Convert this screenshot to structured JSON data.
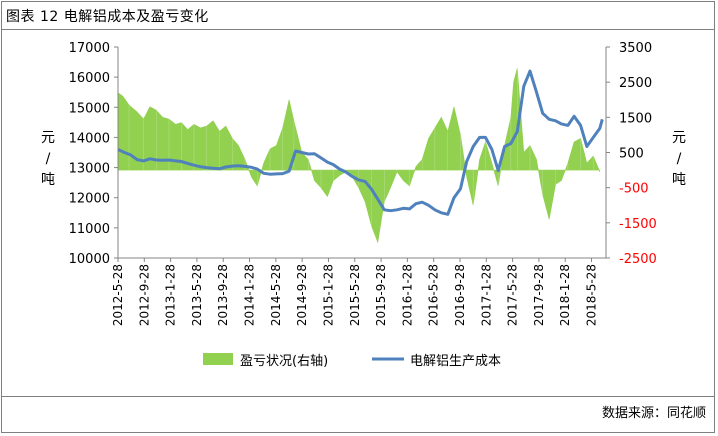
{
  "title": "图表 12 电解铝成本及盈亏变化",
  "source": "数据来源：同花顺",
  "units": {
    "left": [
      "元",
      "/",
      "吨"
    ],
    "right": [
      "元",
      "/",
      "吨"
    ]
  },
  "colors": {
    "profit_area": "#92d050",
    "cost_line": "#4f81bd",
    "right_negative_tick": "#ff0000",
    "frame": "#7f7f7f"
  },
  "chart_data": {
    "type": "line+area",
    "title": "电解铝成本及盈亏变化",
    "x_tick_labels": [
      "2012-5-28",
      "2012-9-28",
      "2013-1-28",
      "2013-5-28",
      "2013-9-28",
      "2014-1-28",
      "2014-5-28",
      "2014-9-28",
      "2015-1-28",
      "2015-5-28",
      "2015-9-28",
      "2016-1-28",
      "2016-5-28",
      "2016-9-28",
      "2017-1-28",
      "2017-5-28",
      "2017-9-28",
      "2018-1-28",
      "2018-5-28"
    ],
    "y_left": {
      "min": 10000,
      "max": 17000,
      "step": 1000,
      "ticks": [
        "10000",
        "11000",
        "12000",
        "13000",
        "14000",
        "15000",
        "16000",
        "17000"
      ]
    },
    "y_right": {
      "min": -2500,
      "max": 3500,
      "step": 1000,
      "ticks": [
        "-2500",
        "-1500",
        "-500",
        "500",
        "1500",
        "2500",
        "3500"
      ]
    },
    "grid": false,
    "legend_position": "bottom",
    "series": [
      {
        "name": "盈亏状况(右轴)",
        "type": "area",
        "axis": "right",
        "points": [
          [
            "2012-05-28",
            2200
          ],
          [
            "2012-06-20",
            2100
          ],
          [
            "2012-07-20",
            1850
          ],
          [
            "2012-08-28",
            1650
          ],
          [
            "2012-09-28",
            1450
          ],
          [
            "2012-10-28",
            1800
          ],
          [
            "2012-11-28",
            1700
          ],
          [
            "2012-12-28",
            1500
          ],
          [
            "2013-01-28",
            1450
          ],
          [
            "2013-02-28",
            1300
          ],
          [
            "2013-03-28",
            1350
          ],
          [
            "2013-04-28",
            1150
          ],
          [
            "2013-05-28",
            1300
          ],
          [
            "2013-06-28",
            1200
          ],
          [
            "2013-07-28",
            1250
          ],
          [
            "2013-08-28",
            1400
          ],
          [
            "2013-09-28",
            1100
          ],
          [
            "2013-10-28",
            1250
          ],
          [
            "2013-11-28",
            900
          ],
          [
            "2013-12-28",
            700
          ],
          [
            "2014-01-28",
            300
          ],
          [
            "2014-02-28",
            -200
          ],
          [
            "2014-03-28",
            -450
          ],
          [
            "2014-04-28",
            200
          ],
          [
            "2014-05-28",
            600
          ],
          [
            "2014-06-28",
            700
          ],
          [
            "2014-07-28",
            1200
          ],
          [
            "2014-08-28",
            2000
          ],
          [
            "2014-09-20",
            1400
          ],
          [
            "2014-10-28",
            500
          ],
          [
            "2014-11-28",
            300
          ],
          [
            "2014-12-28",
            -300
          ],
          [
            "2015-01-28",
            -500
          ],
          [
            "2015-02-28",
            -750
          ],
          [
            "2015-03-28",
            -300
          ],
          [
            "2015-04-28",
            -150
          ],
          [
            "2015-05-28",
            -50
          ],
          [
            "2015-06-28",
            -200
          ],
          [
            "2015-07-28",
            -500
          ],
          [
            "2015-08-28",
            -900
          ],
          [
            "2015-09-28",
            -1600
          ],
          [
            "2015-10-28",
            -2050
          ],
          [
            "2015-11-28",
            -900
          ],
          [
            "2015-12-28",
            -500
          ],
          [
            "2016-01-28",
            -50
          ],
          [
            "2016-02-28",
            -300
          ],
          [
            "2016-03-28",
            -450
          ],
          [
            "2016-04-28",
            100
          ],
          [
            "2016-05-28",
            300
          ],
          [
            "2016-06-28",
            900
          ],
          [
            "2016-07-28",
            1200
          ],
          [
            "2016-08-28",
            1500
          ],
          [
            "2016-09-28",
            1100
          ],
          [
            "2016-10-28",
            1800
          ],
          [
            "2016-11-28",
            1000
          ],
          [
            "2016-12-28",
            -200
          ],
          [
            "2017-01-28",
            -1000
          ],
          [
            "2017-02-28",
            300
          ],
          [
            "2017-03-28",
            800
          ],
          [
            "2017-04-28",
            200
          ],
          [
            "2017-05-28",
            -450
          ],
          [
            "2017-06-28",
            700
          ],
          [
            "2017-07-28",
            1500
          ],
          [
            "2017-08-10",
            2500
          ],
          [
            "2017-08-28",
            2900
          ],
          [
            "2017-09-28",
            500
          ],
          [
            "2017-10-28",
            700
          ],
          [
            "2017-11-28",
            300
          ],
          [
            "2017-12-28",
            -700
          ],
          [
            "2018-01-28",
            -1400
          ],
          [
            "2018-02-28",
            -400
          ],
          [
            "2018-03-28",
            -300
          ],
          [
            "2018-04-28",
            200
          ],
          [
            "2018-05-28",
            800
          ],
          [
            "2018-06-28",
            900
          ],
          [
            "2018-07-28",
            200
          ],
          [
            "2018-08-28",
            400
          ],
          [
            "2018-09-28",
            -50
          ]
        ]
      },
      {
        "name": "电解铝生产成本",
        "type": "line",
        "axis": "left",
        "points": [
          [
            "2012-05-28",
            13600
          ],
          [
            "2012-06-28",
            13500
          ],
          [
            "2012-07-28",
            13420
          ],
          [
            "2012-08-28",
            13260
          ],
          [
            "2012-09-28",
            13220
          ],
          [
            "2012-10-28",
            13290
          ],
          [
            "2012-11-28",
            13250
          ],
          [
            "2012-12-28",
            13240
          ],
          [
            "2013-01-28",
            13250
          ],
          [
            "2013-02-28",
            13220
          ],
          [
            "2013-03-28",
            13200
          ],
          [
            "2013-04-28",
            13140
          ],
          [
            "2013-05-28",
            13080
          ],
          [
            "2013-06-28",
            13030
          ],
          [
            "2013-07-28",
            13000
          ],
          [
            "2013-08-28",
            12980
          ],
          [
            "2013-09-28",
            12960
          ],
          [
            "2013-10-28",
            13020
          ],
          [
            "2013-11-28",
            13050
          ],
          [
            "2013-12-28",
            13060
          ],
          [
            "2014-01-28",
            13040
          ],
          [
            "2014-02-28",
            13010
          ],
          [
            "2014-03-28",
            12950
          ],
          [
            "2014-04-28",
            12810
          ],
          [
            "2014-05-28",
            12780
          ],
          [
            "2014-06-28",
            12790
          ],
          [
            "2014-07-28",
            12800
          ],
          [
            "2014-08-28",
            12880
          ],
          [
            "2014-09-28",
            13550
          ],
          [
            "2014-10-28",
            13500
          ],
          [
            "2014-11-28",
            13450
          ],
          [
            "2014-12-28",
            13460
          ],
          [
            "2015-01-28",
            13320
          ],
          [
            "2015-02-28",
            13180
          ],
          [
            "2015-03-28",
            13100
          ],
          [
            "2015-04-28",
            12950
          ],
          [
            "2015-05-28",
            12850
          ],
          [
            "2015-06-28",
            12700
          ],
          [
            "2015-07-28",
            12590
          ],
          [
            "2015-08-28",
            12540
          ],
          [
            "2015-09-28",
            12280
          ],
          [
            "2015-10-28",
            11950
          ],
          [
            "2015-11-28",
            11600
          ],
          [
            "2015-12-28",
            11570
          ],
          [
            "2016-01-28",
            11600
          ],
          [
            "2016-02-28",
            11650
          ],
          [
            "2016-03-28",
            11630
          ],
          [
            "2016-04-28",
            11800
          ],
          [
            "2016-05-28",
            11850
          ],
          [
            "2016-06-28",
            11750
          ],
          [
            "2016-07-28",
            11600
          ],
          [
            "2016-08-28",
            11500
          ],
          [
            "2016-09-28",
            11450
          ],
          [
            "2016-10-28",
            12000
          ],
          [
            "2016-11-28",
            12300
          ],
          [
            "2016-12-28",
            13200
          ],
          [
            "2017-01-28",
            13700
          ],
          [
            "2017-02-28",
            14000
          ],
          [
            "2017-03-28",
            14000
          ],
          [
            "2017-04-28",
            13600
          ],
          [
            "2017-05-28",
            12900
          ],
          [
            "2017-06-28",
            13700
          ],
          [
            "2017-07-28",
            13800
          ],
          [
            "2017-08-28",
            14200
          ],
          [
            "2017-09-28",
            15700
          ],
          [
            "2017-10-28",
            16200
          ],
          [
            "2017-11-28",
            15500
          ],
          [
            "2017-12-28",
            14800
          ],
          [
            "2018-01-28",
            14600
          ],
          [
            "2018-02-28",
            14550
          ],
          [
            "2018-03-28",
            14450
          ],
          [
            "2018-04-28",
            14400
          ],
          [
            "2018-05-28",
            14700
          ],
          [
            "2018-06-28",
            14400
          ],
          [
            "2018-07-28",
            13700
          ],
          [
            "2018-08-28",
            14000
          ],
          [
            "2018-09-28",
            14300
          ],
          [
            "2018-10-10",
            14600
          ]
        ]
      }
    ]
  }
}
